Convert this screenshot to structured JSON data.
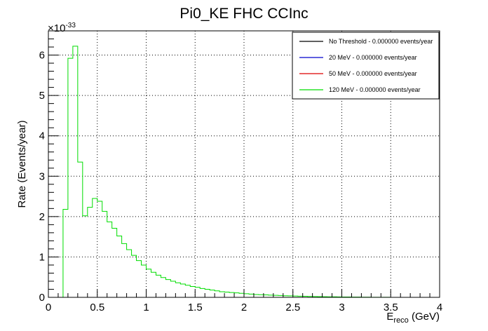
{
  "chart_data": {
    "type": "histogram",
    "title": "Pi0_KE FHC CCInc",
    "xlabel": {
      "main": "E",
      "sub": "reco",
      "unit": " (GeV)"
    },
    "ylabel": "Rate (Events/year)",
    "y_multiplier": {
      "base": "×10",
      "exp": "-33"
    },
    "xlim": [
      0,
      4
    ],
    "ylim": [
      0,
      6.6
    ],
    "x_ticks": [
      "0",
      "0.5",
      "1",
      "1.5",
      "2",
      "2.5",
      "3",
      "3.5",
      "4"
    ],
    "y_ticks": [
      "0",
      "1",
      "2",
      "3",
      "4",
      "5",
      "6"
    ],
    "grid": true,
    "bin_width": 0.05,
    "bins_start": 0,
    "legend_placement": "top-right",
    "series": [
      {
        "name": "No Threshold - 0.000000 events/year",
        "color": "#000000",
        "values": []
      },
      {
        "name": "20 MeV - 0.000000 events/year",
        "color": "#0000cc",
        "values": []
      },
      {
        "name": "50 MeV - 0.000000 events/year",
        "color": "#dd0000",
        "values": []
      },
      {
        "name": "120 MeV - 0.000000 events/year",
        "color": "#00dd00",
        "values": [
          0,
          0,
          0,
          2.18,
          5.92,
          6.22,
          3.35,
          2.02,
          2.23,
          2.45,
          2.38,
          2.13,
          1.87,
          1.71,
          1.52,
          1.33,
          1.18,
          1.04,
          0.91,
          0.8,
          0.7,
          0.62,
          0.55,
          0.49,
          0.44,
          0.4,
          0.36,
          0.33,
          0.3,
          0.27,
          0.25,
          0.22,
          0.2,
          0.18,
          0.16,
          0.14,
          0.13,
          0.12,
          0.11,
          0.1,
          0.09,
          0.08,
          0.07,
          0.065,
          0.06,
          0.055,
          0.05,
          0.045,
          0.04,
          0.036,
          0.032,
          0.028,
          0.025,
          0.022,
          0.02,
          0.018,
          0.016,
          0.014,
          0.012,
          0.01,
          0.009,
          0.008,
          0.007,
          0.006,
          0.005,
          0.004,
          0.003,
          0.003,
          0.002,
          0.002,
          0.001,
          0,
          0,
          0,
          0,
          0,
          0,
          0,
          0,
          0
        ]
      }
    ]
  }
}
